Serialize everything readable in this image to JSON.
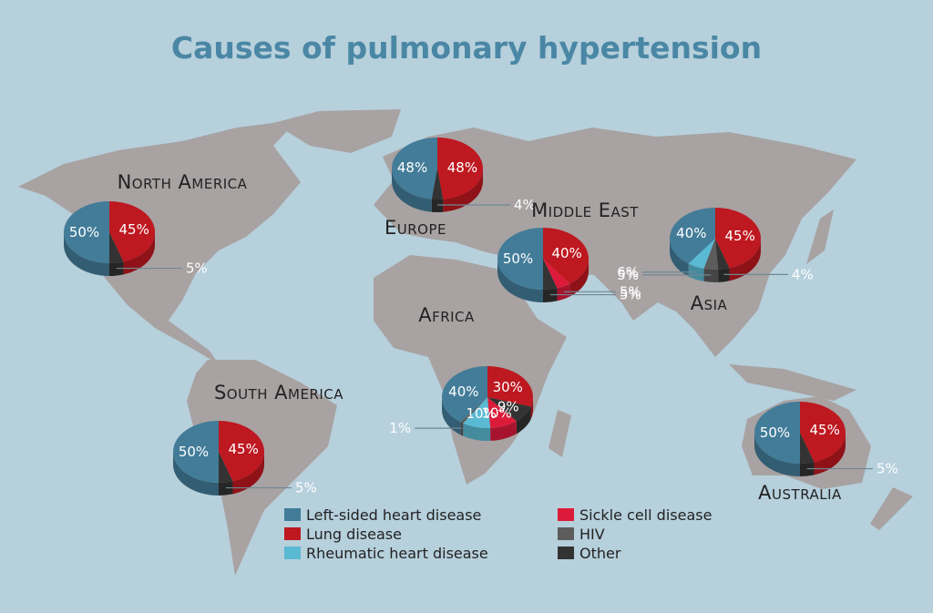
{
  "title": "Causes of pulmonary hypertension",
  "legend": [
    {
      "name": "Left-sided heart disease",
      "color": "#427c98"
    },
    {
      "name": "Lung disease",
      "color": "#be1820"
    },
    {
      "name": "Rheumatic heart disease",
      "color": "#5ab9d3"
    },
    {
      "name": "Sickle cell disease",
      "color": "#dc1b3b"
    },
    {
      "name": "HIV",
      "color": "#5c5c5c"
    },
    {
      "name": "Other",
      "color": "#333333"
    }
  ],
  "chart_data": [
    {
      "type": "pie",
      "title": "North America",
      "categories": [
        "Left-sided heart disease",
        "Lung disease",
        "Other"
      ],
      "values": [
        50,
        45,
        5
      ],
      "value_labels": [
        "50%",
        "45%",
        "5%"
      ],
      "colors": [
        "#427c98",
        "#be1820",
        "#333333"
      ]
    },
    {
      "type": "pie",
      "title": "Europe",
      "categories": [
        "Left-sided heart disease",
        "Lung disease",
        "Other"
      ],
      "values": [
        48,
        48,
        4
      ],
      "value_labels": [
        "48%",
        "48%",
        "4%"
      ],
      "colors": [
        "#427c98",
        "#be1820",
        "#333333"
      ]
    },
    {
      "type": "pie",
      "title": "Middle East",
      "categories": [
        "Left-sided heart disease",
        "Lung disease",
        "Sickle cell disease",
        "Other"
      ],
      "values": [
        50,
        40,
        5,
        5
      ],
      "value_labels": [
        "50%",
        "40%",
        "5%",
        "5%"
      ],
      "colors": [
        "#427c98",
        "#be1820",
        "#dc1b3b",
        "#333333"
      ]
    },
    {
      "type": "pie",
      "title": "Asia",
      "categories": [
        "Left-sided heart disease",
        "Lung disease",
        "Other",
        "HIV",
        "Rheumatic heart disease"
      ],
      "values": [
        40,
        45,
        4,
        5,
        6
      ],
      "value_labels": [
        "40%",
        "45%",
        "4%",
        "5%",
        "6%"
      ],
      "colors": [
        "#427c98",
        "#be1820",
        "#333333",
        "#5c5c5c",
        "#5ab9d3"
      ]
    },
    {
      "type": "pie",
      "title": "Africa",
      "categories": [
        "Left-sided heart disease",
        "Lung disease",
        "Other",
        "Sickle cell disease",
        "Rheumatic heart disease",
        "HIV"
      ],
      "values": [
        40,
        30,
        9,
        10,
        10,
        1
      ],
      "value_labels": [
        "40%",
        "30%",
        "9%",
        "10%",
        "10%",
        "1%"
      ],
      "colors": [
        "#427c98",
        "#be1820",
        "#333333",
        "#dc1b3b",
        "#5ab9d3",
        "#5c5c5c"
      ]
    },
    {
      "type": "pie",
      "title": "South America",
      "categories": [
        "Left-sided heart disease",
        "Lung disease",
        "Other"
      ],
      "values": [
        50,
        45,
        5
      ],
      "value_labels": [
        "50%",
        "45%",
        "5%"
      ],
      "colors": [
        "#427c98",
        "#be1820",
        "#333333"
      ]
    },
    {
      "type": "pie",
      "title": "Australia",
      "categories": [
        "Left-sided heart disease",
        "Lung disease",
        "Other"
      ],
      "values": [
        50,
        45,
        5
      ],
      "value_labels": [
        "50%",
        "45%",
        "5%"
      ],
      "colors": [
        "#427c98",
        "#be1820",
        "#333333"
      ]
    }
  ]
}
